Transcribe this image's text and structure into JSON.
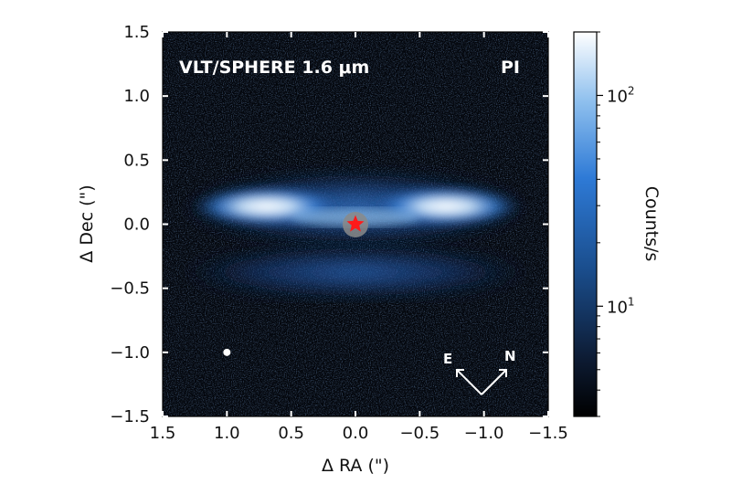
{
  "figure": {
    "overlay_left": "VLT/SPHERE 1.6 μm",
    "overlay_right": "PI",
    "compass": {
      "east": "E",
      "north": "N"
    }
  },
  "chart_data": {
    "type": "heatmap",
    "xlabel": "Δ RA (\")",
    "ylabel": "Δ Dec (\")",
    "xlim": [
      1.5,
      -1.5
    ],
    "ylim": [
      -1.5,
      1.5
    ],
    "xticks": [
      1.5,
      1.0,
      0.5,
      0.0,
      -0.5,
      -1.0,
      -1.5
    ],
    "xtick_labels": [
      "1.5",
      "1.0",
      "0.5",
      "0.0",
      "−0.5",
      "−1.0",
      "−1.5"
    ],
    "yticks": [
      1.5,
      1.0,
      0.5,
      0.0,
      -0.5,
      -1.0,
      -1.5
    ],
    "ytick_labels": [
      "1.5",
      "1.0",
      "0.5",
      "0.0",
      "−0.5",
      "−1.0",
      "−1.5"
    ],
    "colorbar": {
      "label": "Counts/s",
      "scale": "log",
      "range": [
        3,
        200
      ],
      "ticks": [
        {
          "value": 100,
          "base": "10",
          "exp": "2"
        },
        {
          "value": 10,
          "base": "10",
          "exp": "1"
        }
      ],
      "colormap": [
        "#000000",
        "#0d1b33",
        "#1a4d8c",
        "#2e7ad6",
        "#8fc0ee",
        "#ffffff"
      ]
    },
    "star": {
      "x": 0.0,
      "y": 0.0,
      "color": "#ff1a1a"
    },
    "reference_dot": {
      "x": 1.0,
      "y": -1.0
    }
  }
}
